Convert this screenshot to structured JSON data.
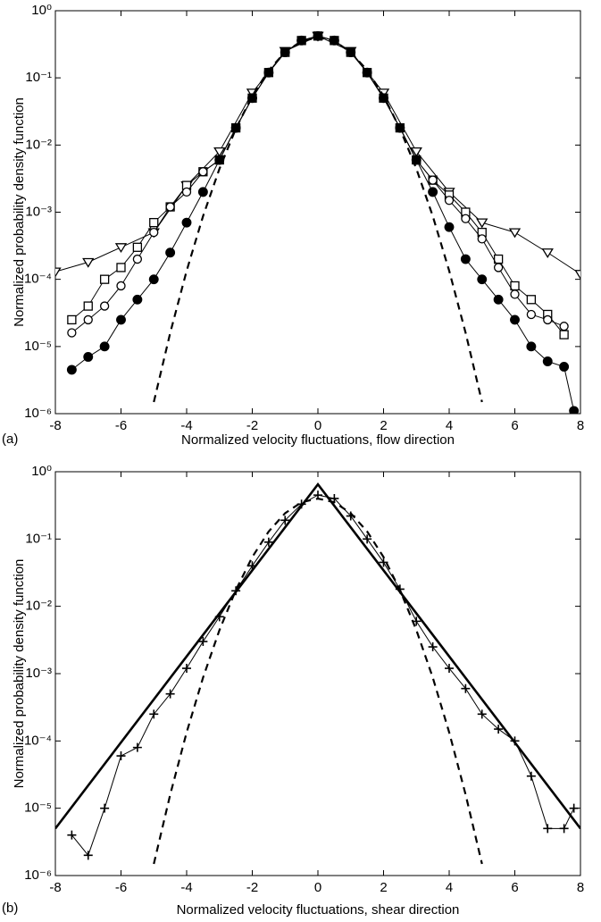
{
  "chart_data": [
    {
      "type": "line",
      "panel_label": "(a)",
      "xlabel": "Normalized velocity fluctuations, flow direction",
      "ylabel": "Normalized probability density function",
      "yscale": "log",
      "grid": false,
      "xlim": [
        -8,
        8
      ],
      "xticks": [
        -8,
        -6,
        -4,
        -2,
        0,
        2,
        4,
        6,
        8
      ],
      "ylim": [
        1e-06,
        1
      ],
      "yticks": [
        {
          "value": 1e-06,
          "label": "10⁻⁶"
        },
        {
          "value": 1e-05,
          "label": "10⁻⁵"
        },
        {
          "value": 0.0001,
          "label": "10⁻⁴"
        },
        {
          "value": 0.001,
          "label": "10⁻³"
        },
        {
          "value": 0.01,
          "label": "10⁻²"
        },
        {
          "value": 0.1,
          "label": "10⁻¹"
        },
        {
          "value": 1,
          "label": "10⁰"
        }
      ],
      "series": [
        {
          "color": "#000000",
          "marker": "triangle-down",
          "line": "solid",
          "x": [
            -8,
            -7,
            -6,
            -5,
            -4,
            -3,
            -2,
            -1,
            0,
            1,
            2,
            3,
            4,
            5,
            6,
            7,
            8
          ],
          "values": [
            0.00013,
            0.00018,
            0.0003,
            0.0005,
            0.0025,
            0.008,
            0.06,
            0.25,
            0.42,
            0.25,
            0.06,
            0.008,
            0.002,
            0.0007,
            0.0005,
            0.00025,
            0.00012
          ]
        },
        {
          "color": "#000000",
          "marker": "square",
          "line": "solid",
          "x": [
            -7.5,
            -7,
            -6.5,
            -6,
            -5.5,
            -5,
            -4.5,
            -4,
            -3.5,
            -3,
            -2.5,
            -2,
            -1.5,
            -1,
            -0.5,
            0,
            0.5,
            1,
            1.5,
            2,
            2.5,
            3,
            3.5,
            4,
            4.5,
            5,
            5.5,
            6,
            6.5,
            7,
            7.5
          ],
          "values": [
            2.5e-05,
            4e-05,
            0.0001,
            0.00015,
            0.0003,
            0.0007,
            0.0012,
            0.0025,
            0.004,
            0.006,
            0.018,
            0.05,
            0.12,
            0.24,
            0.36,
            0.42,
            0.36,
            0.24,
            0.12,
            0.05,
            0.018,
            0.006,
            0.003,
            0.0018,
            0.001,
            0.0005,
            0.0002,
            8e-05,
            5e-05,
            3e-05,
            1.5e-05
          ]
        },
        {
          "color": "#000000",
          "marker": "circle",
          "line": "solid",
          "x": [
            -7.5,
            -7,
            -6.5,
            -6,
            -5.5,
            -5,
            -4.5,
            -4,
            -3.5,
            -3,
            -2.5,
            -2,
            -1.5,
            -1,
            -0.5,
            0,
            0.5,
            1,
            1.5,
            2,
            2.5,
            3,
            3.5,
            4,
            4.5,
            5,
            5.5,
            6,
            6.5,
            7,
            7.5
          ],
          "values": [
            1.6e-05,
            2.5e-05,
            4e-05,
            8e-05,
            0.0002,
            0.0005,
            0.0012,
            0.002,
            0.004,
            0.006,
            0.018,
            0.05,
            0.12,
            0.24,
            0.36,
            0.42,
            0.36,
            0.24,
            0.12,
            0.05,
            0.018,
            0.006,
            0.003,
            0.0015,
            0.0008,
            0.0004,
            0.00015,
            6e-05,
            3e-05,
            2.5e-05,
            2e-05
          ]
        },
        {
          "color": "#000000",
          "marker": "star",
          "line": "solid",
          "x": [
            -7.5,
            -7,
            -6.5,
            -6,
            -5.5,
            -5,
            -4.5,
            -4,
            -3.5,
            -3,
            -2.5,
            -2,
            -1.5,
            -1,
            -0.5,
            0,
            0.5,
            1,
            1.5,
            2,
            2.5,
            3,
            3.5,
            4,
            4.5,
            5,
            5.5,
            6,
            6.5,
            7,
            7.5,
            7.8
          ],
          "values": [
            4.5e-06,
            7e-06,
            1e-05,
            2.5e-05,
            5e-05,
            0.0001,
            0.00025,
            0.0007,
            0.002,
            0.006,
            0.018,
            0.05,
            0.12,
            0.24,
            0.36,
            0.42,
            0.36,
            0.24,
            0.12,
            0.05,
            0.018,
            0.006,
            0.002,
            0.0006,
            0.0002,
            0.0001,
            5e-05,
            2.5e-05,
            1e-05,
            6e-06,
            5e-06,
            1.1e-06
          ]
        },
        {
          "color": "#000000",
          "marker": "none",
          "line": "dashed",
          "x": [
            -5,
            -4.5,
            -4,
            -3.5,
            -3,
            -2.5,
            -2,
            -1.5,
            -1,
            -0.5,
            0,
            0.5,
            1,
            1.5,
            2,
            2.5,
            3,
            3.5,
            4,
            4.5,
            5
          ],
          "values": [
            1.49e-06,
            1.6e-05,
            0.000134,
            0.000873,
            0.00443,
            0.0175,
            0.054,
            0.1295,
            0.242,
            0.3521,
            0.3989,
            0.3521,
            0.242,
            0.1295,
            0.054,
            0.0175,
            0.00443,
            0.000873,
            0.000134,
            1.6e-05,
            1.49e-06
          ]
        }
      ]
    },
    {
      "type": "line",
      "panel_label": "(b)",
      "xlabel": "Normalized velocity fluctuations, shear direction",
      "ylabel": "Normalized probability density function",
      "yscale": "log",
      "grid": false,
      "xlim": [
        -8,
        8
      ],
      "xticks": [
        -8,
        -6,
        -4,
        -2,
        0,
        2,
        4,
        6,
        8
      ],
      "ylim": [
        1e-06,
        1
      ],
      "yticks": [
        {
          "value": 1e-06,
          "label": "10⁻⁶"
        },
        {
          "value": 1e-05,
          "label": "10⁻⁵"
        },
        {
          "value": 0.0001,
          "label": "10⁻⁴"
        },
        {
          "value": 0.001,
          "label": "10⁻³"
        },
        {
          "value": 0.01,
          "label": "10⁻²"
        },
        {
          "value": 0.1,
          "label": "10⁻¹"
        },
        {
          "value": 1,
          "label": "10⁰"
        }
      ],
      "series": [
        {
          "color": "#000000",
          "marker": "plus",
          "line": "thin",
          "x": [
            -7.5,
            -7,
            -6.5,
            -6,
            -5.5,
            -5,
            -4.5,
            -4,
            -3.5,
            -3,
            -2.5,
            -2,
            -1.5,
            -1,
            -0.5,
            0,
            0.5,
            1,
            1.5,
            2,
            2.5,
            3,
            3.5,
            4,
            4.5,
            5,
            5.5,
            6,
            6.5,
            7,
            7.5,
            7.8
          ],
          "values": [
            4e-06,
            2e-06,
            1e-05,
            6e-05,
            8e-05,
            0.00025,
            0.0005,
            0.0012,
            0.003,
            0.007,
            0.017,
            0.04,
            0.09,
            0.19,
            0.33,
            0.45,
            0.4,
            0.22,
            0.1,
            0.045,
            0.018,
            0.006,
            0.0025,
            0.0012,
            0.0006,
            0.00025,
            0.00015,
            0.0001,
            3e-05,
            5e-06,
            5e-06,
            1e-05
          ]
        },
        {
          "color": "#000000",
          "marker": "none",
          "line": "thick",
          "x": [
            -8,
            0,
            8
          ],
          "values": [
            5e-06,
            0.65,
            5e-06
          ]
        },
        {
          "color": "#000000",
          "marker": "none",
          "line": "dashed",
          "x": [
            -5,
            -4.5,
            -4,
            -3.5,
            -3,
            -2.5,
            -2,
            -1.5,
            -1,
            -0.5,
            0,
            0.5,
            1,
            1.5,
            2,
            2.5,
            3,
            3.5,
            4,
            4.5,
            5
          ],
          "values": [
            1.49e-06,
            1.6e-05,
            0.000134,
            0.000873,
            0.00443,
            0.0175,
            0.054,
            0.1295,
            0.242,
            0.3521,
            0.3989,
            0.3521,
            0.242,
            0.1295,
            0.054,
            0.0175,
            0.00443,
            0.000873,
            0.000134,
            1.6e-05,
            1.49e-06
          ]
        }
      ]
    }
  ]
}
